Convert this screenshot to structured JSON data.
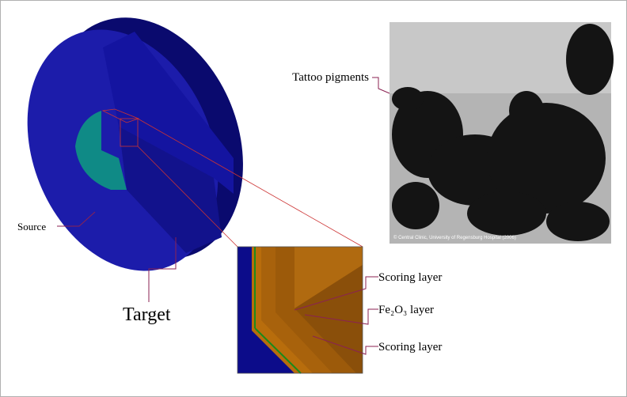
{
  "photo": {
    "label": "Tattoo pigments",
    "credit": "© Central Clinic, University of Regensburg Hospital (2006)"
  },
  "cylinder": {
    "source_label": "Source",
    "target_label": "Target"
  },
  "inset": {
    "layers": [
      "Scoring layer",
      "Fe₂O₃ layer",
      "Scoring layer"
    ]
  }
}
